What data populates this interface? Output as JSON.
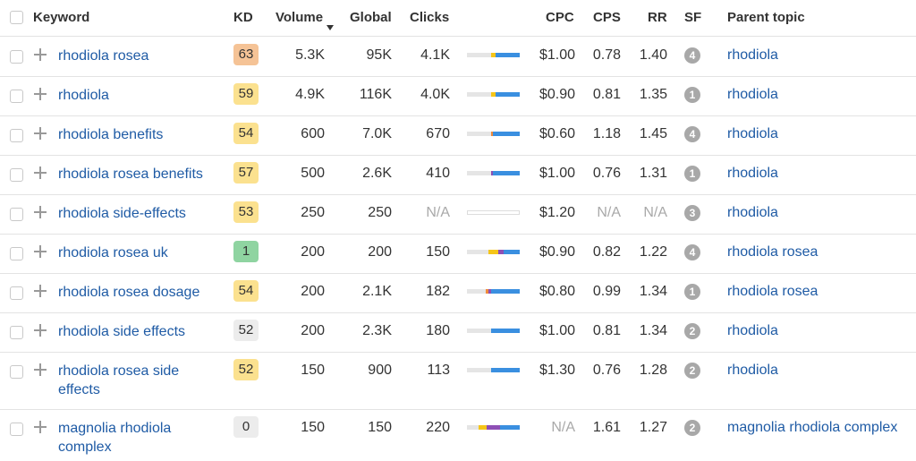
{
  "columns": {
    "keyword": "Keyword",
    "kd": "KD",
    "volume": "Volume",
    "global": "Global",
    "clicks": "Clicks",
    "cpc": "CPC",
    "cps": "CPS",
    "rr": "RR",
    "sf": "SF",
    "parent_topic": "Parent topic"
  },
  "sort": {
    "column": "volume",
    "direction": "desc"
  },
  "kd_colors": {
    "hard": "#f5c396",
    "medium": "#fbe18f",
    "easy": "#8fd4a1",
    "neutral": "#ececec"
  },
  "bar_colors": {
    "gray": "#e5e5e5",
    "yellow": "#f5c518",
    "orange": "#f08a3a",
    "purple": "#8e4fb5",
    "blue": "#3a8fe0"
  },
  "rows": [
    {
      "keyword": "rhodiola rosea",
      "kd": "63",
      "kd_level": "hard",
      "volume": "5.3K",
      "global": "95K",
      "clicks": "4.1K",
      "click_bar": [
        [
          "gray",
          0.45
        ],
        [
          "yellow",
          0.1
        ],
        [
          "blue",
          0.45
        ]
      ],
      "cpc": "$1.00",
      "cps": "0.78",
      "rr": "1.40",
      "sf": "4",
      "parent_topic": "rhodiola"
    },
    {
      "keyword": "rhodiola",
      "kd": "59",
      "kd_level": "medium",
      "volume": "4.9K",
      "global": "116K",
      "clicks": "4.0K",
      "click_bar": [
        [
          "gray",
          0.45
        ],
        [
          "yellow",
          0.1
        ],
        [
          "blue",
          0.45
        ]
      ],
      "cpc": "$0.90",
      "cps": "0.81",
      "rr": "1.35",
      "sf": "1",
      "parent_topic": "rhodiola"
    },
    {
      "keyword": "rhodiola benefits",
      "kd": "54",
      "kd_level": "medium",
      "volume": "600",
      "global": "7.0K",
      "clicks": "670",
      "click_bar": [
        [
          "gray",
          0.45
        ],
        [
          "orange",
          0.05
        ],
        [
          "blue",
          0.5
        ]
      ],
      "cpc": "$0.60",
      "cps": "1.18",
      "rr": "1.45",
      "sf": "4",
      "parent_topic": "rhodiola"
    },
    {
      "keyword": "rhodiola rosea benefits",
      "kd": "57",
      "kd_level": "medium",
      "volume": "500",
      "global": "2.6K",
      "clicks": "410",
      "click_bar": [
        [
          "gray",
          0.45
        ],
        [
          "purple",
          0.05
        ],
        [
          "blue",
          0.5
        ]
      ],
      "cpc": "$1.00",
      "cps": "0.76",
      "rr": "1.31",
      "sf": "1",
      "parent_topic": "rhodiola"
    },
    {
      "keyword": "rhodiola side-effects",
      "kd": "53",
      "kd_level": "medium",
      "volume": "250",
      "global": "250",
      "clicks": "N/A",
      "clicks_na": true,
      "click_bar": [],
      "cpc": "$1.20",
      "cps": "N/A",
      "cps_na": true,
      "rr": "N/A",
      "rr_na": true,
      "sf": "3",
      "parent_topic": "rhodiola"
    },
    {
      "keyword": "rhodiola rosea uk",
      "kd": "1",
      "kd_level": "easy",
      "volume": "200",
      "global": "200",
      "clicks": "150",
      "click_bar": [
        [
          "gray",
          0.4
        ],
        [
          "yellow",
          0.2
        ],
        [
          "purple",
          0.1
        ],
        [
          "blue",
          0.3
        ]
      ],
      "cpc": "$0.90",
      "cps": "0.82",
      "rr": "1.22",
      "sf": "4",
      "parent_topic": "rhodiola rosea"
    },
    {
      "keyword": "rhodiola rosea dosage",
      "kd": "54",
      "kd_level": "medium",
      "volume": "200",
      "global": "2.1K",
      "clicks": "182",
      "click_bar": [
        [
          "gray",
          0.35
        ],
        [
          "orange",
          0.05
        ],
        [
          "purple",
          0.05
        ],
        [
          "blue",
          0.55
        ]
      ],
      "cpc": "$0.80",
      "cps": "0.99",
      "rr": "1.34",
      "sf": "1",
      "parent_topic": "rhodiola rosea"
    },
    {
      "keyword": "rhodiola side effects",
      "kd": "52",
      "kd_level": "neutral",
      "volume": "200",
      "global": "2.3K",
      "clicks": "180",
      "click_bar": [
        [
          "gray",
          0.45
        ],
        [
          "blue",
          0.55
        ]
      ],
      "cpc": "$1.00",
      "cps": "0.81",
      "rr": "1.34",
      "sf": "2",
      "parent_topic": "rhodiola"
    },
    {
      "keyword": "rhodiola rosea side effects",
      "kd": "52",
      "kd_level": "medium",
      "volume": "150",
      "global": "900",
      "clicks": "113",
      "click_bar": [
        [
          "gray",
          0.45
        ],
        [
          "blue",
          0.55
        ]
      ],
      "cpc": "$1.30",
      "cps": "0.76",
      "rr": "1.28",
      "sf": "2",
      "parent_topic": "rhodiola"
    },
    {
      "keyword": "magnolia rhodiola complex",
      "kd": "0",
      "kd_level": "neutral",
      "volume": "150",
      "global": "150",
      "clicks": "220",
      "click_bar": [
        [
          "gray",
          0.22
        ],
        [
          "yellow",
          0.15
        ],
        [
          "purple",
          0.25
        ],
        [
          "blue",
          0.38
        ]
      ],
      "cpc": "N/A",
      "cpc_na": true,
      "cps": "1.61",
      "rr": "1.27",
      "sf": "2",
      "parent_topic": "magnolia rhodiola complex"
    }
  ]
}
